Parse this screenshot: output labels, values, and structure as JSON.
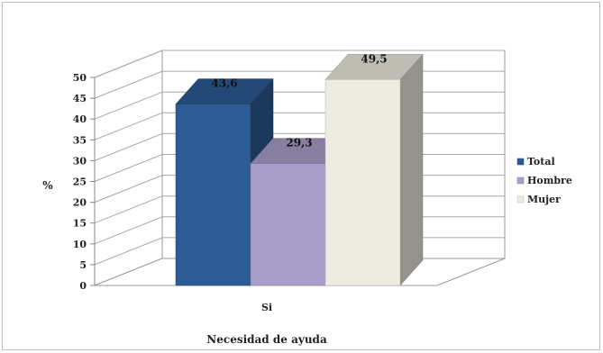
{
  "chart_data": {
    "type": "bar",
    "categories": [
      "Si"
    ],
    "series": [
      {
        "name": "Total",
        "values": [
          43.6
        ],
        "label": "43,6",
        "color": "#2d5b95"
      },
      {
        "name": "Hombre",
        "values": [
          29.3
        ],
        "label": "29,3",
        "color": "#a99ec9"
      },
      {
        "name": "Mujer",
        "values": [
          49.5
        ],
        "label": "49,5",
        "color": "#eeece1"
      }
    ],
    "title": "",
    "xlabel": "Necesidad de ayuda",
    "ylabel": "%",
    "ylim": [
      0,
      50
    ],
    "yticks": [
      0,
      5,
      10,
      15,
      20,
      25,
      30,
      35,
      40,
      45,
      50
    ],
    "grid": true,
    "legend_position": "right",
    "style": "3d-clustered-column"
  }
}
